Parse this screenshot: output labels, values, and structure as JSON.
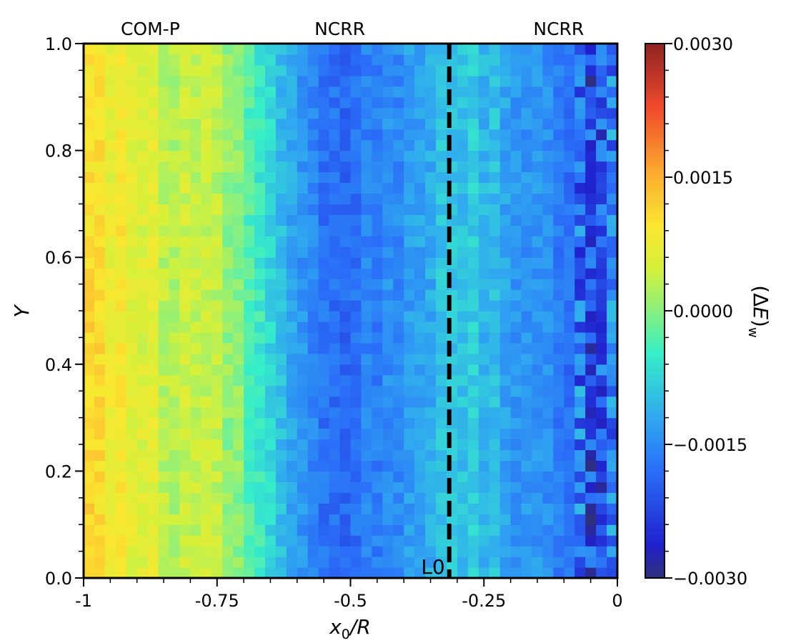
{
  "chart_data": {
    "type": "heatmap",
    "title": "",
    "xlabel": "x₀/R",
    "xlabel_main": "x",
    "xlabel_sub": "0",
    "xlabel_tail": "/R",
    "ylabel": "Y",
    "xlim": [
      -1,
      0
    ],
    "ylim": [
      0,
      1
    ],
    "x_ticks": [
      -1,
      -0.75,
      -0.5,
      -0.25,
      0
    ],
    "x_tick_labels": [
      "-1",
      "-0.75",
      "-0.5",
      "-0.25",
      "0"
    ],
    "y_ticks": [
      0,
      0.2,
      0.4,
      0.6,
      0.8,
      1.0
    ],
    "y_tick_labels": [
      "0.0",
      "0.2",
      "0.4",
      "0.6",
      "0.8",
      "1.0"
    ],
    "colorbar": {
      "label": "(ΔE)w",
      "label_prefix": "(Δ",
      "label_italic": "E",
      "label_suffix": ")",
      "label_sub": "w",
      "vmin": -0.003,
      "vmax": 0.003,
      "ticks": [
        -0.003,
        -0.0015,
        0,
        0.0015,
        0.003
      ],
      "tick_labels": [
        "−0.0030",
        "−0.0015",
        "0.0000",
        "0.0015",
        "0.0030"
      ],
      "colormap": "jet"
    },
    "grid": {
      "nx": 50,
      "ny": 50,
      "description": "Value per cell varies mainly with x0/R; coarse column profile below (values in units of 1e-3)",
      "column_profile_x": [
        -1.0,
        -0.95,
        -0.9,
        -0.85,
        -0.8,
        -0.75,
        -0.7,
        -0.65,
        -0.6,
        -0.55,
        -0.5,
        -0.45,
        -0.4,
        -0.35,
        -0.32,
        -0.3,
        -0.25,
        -0.2,
        -0.15,
        -0.1,
        -0.06,
        -0.05,
        -0.02,
        0.0
      ],
      "column_profile_value_e3": [
        0.95,
        0.9,
        0.65,
        0.5,
        0.35,
        0.15,
        -0.15,
        -0.6,
        -1.4,
        -1.7,
        -1.8,
        -1.65,
        -1.5,
        -1.2,
        -1.0,
        -0.8,
        -1.0,
        -1.2,
        -1.4,
        -1.6,
        -1.9,
        -2.4,
        -1.8,
        -1.6
      ]
    },
    "annotations": {
      "regions": [
        {
          "text": "COM-P",
          "x": -0.875
        },
        {
          "text": "NCRR",
          "x": -0.52
        },
        {
          "text": "NCRR",
          "x": -0.11
        }
      ],
      "vline": {
        "x": -0.315,
        "label": "L0",
        "style": "dashed",
        "color": "#000000"
      }
    }
  }
}
